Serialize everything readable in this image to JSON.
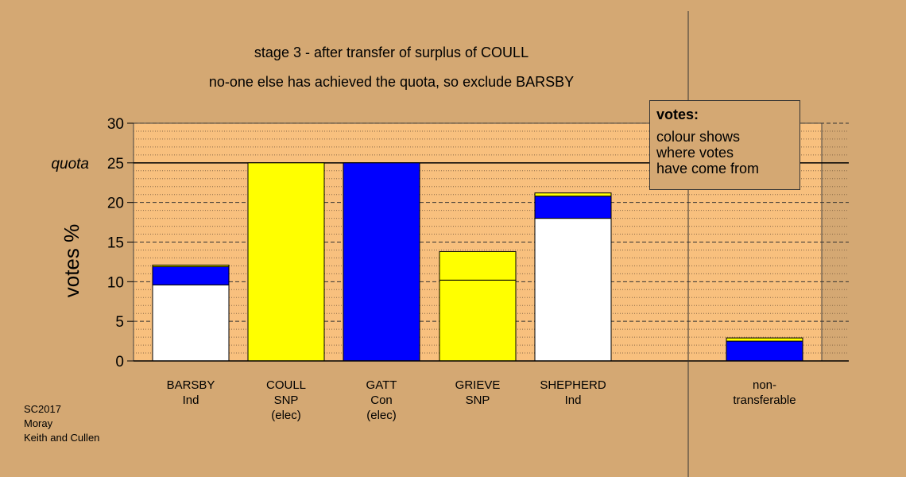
{
  "title_line1": "stage 3 - after transfer of surplus of COULL",
  "title_line2": "no-one else has achieved the quota, so exclude BARSBY",
  "credit": [
    "SC2017",
    "Moray",
    "Keith and Cullen"
  ],
  "legend": {
    "title": "votes:",
    "lines": [
      "colour shows",
      "where votes",
      "have come from"
    ]
  },
  "colors": {
    "background": "#d4a873",
    "plot_bg": "#f8c07e",
    "yellow": "#ffff00",
    "blue": "#0000ff",
    "white": "#ffffff"
  },
  "chart_data": {
    "type": "bar",
    "stacked": true,
    "ylabel": "votes %",
    "ylim": [
      0,
      30
    ],
    "yticks": [
      "0",
      "5",
      "10",
      "15",
      "20",
      "25",
      "30"
    ],
    "quota": {
      "value": 25,
      "label": "quota"
    },
    "categories": [
      {
        "lines": [
          "BARSBY",
          "Ind"
        ]
      },
      {
        "lines": [
          "COULL",
          "SNP",
          "(elec)"
        ]
      },
      {
        "lines": [
          "GATT",
          "Con",
          "(elec)"
        ]
      },
      {
        "lines": [
          "GRIEVE",
          "SNP"
        ]
      },
      {
        "lines": [
          "SHEPHERD",
          "Ind"
        ]
      },
      {
        "lines": [
          "non-",
          "transferable"
        ]
      }
    ],
    "bars": [
      {
        "segments": [
          {
            "color": "white",
            "value": 9.6
          },
          {
            "color": "blue",
            "value": 2.3
          },
          {
            "color": "yellow",
            "value": 0.2
          }
        ]
      },
      {
        "segments": [
          {
            "color": "yellow",
            "value": 25.0
          }
        ]
      },
      {
        "segments": [
          {
            "color": "blue",
            "value": 25.0
          }
        ]
      },
      {
        "segments": [
          {
            "color": "yellow",
            "value": 10.2
          },
          {
            "color": "yellow",
            "value": 3.6
          }
        ]
      },
      {
        "segments": [
          {
            "color": "white",
            "value": 18.0
          },
          {
            "color": "blue",
            "value": 2.8
          },
          {
            "color": "yellow",
            "value": 0.4
          }
        ]
      },
      {
        "segments": [
          {
            "color": "blue",
            "value": 2.5
          },
          {
            "color": "yellow",
            "value": 0.4
          }
        ]
      }
    ],
    "grid": true
  }
}
